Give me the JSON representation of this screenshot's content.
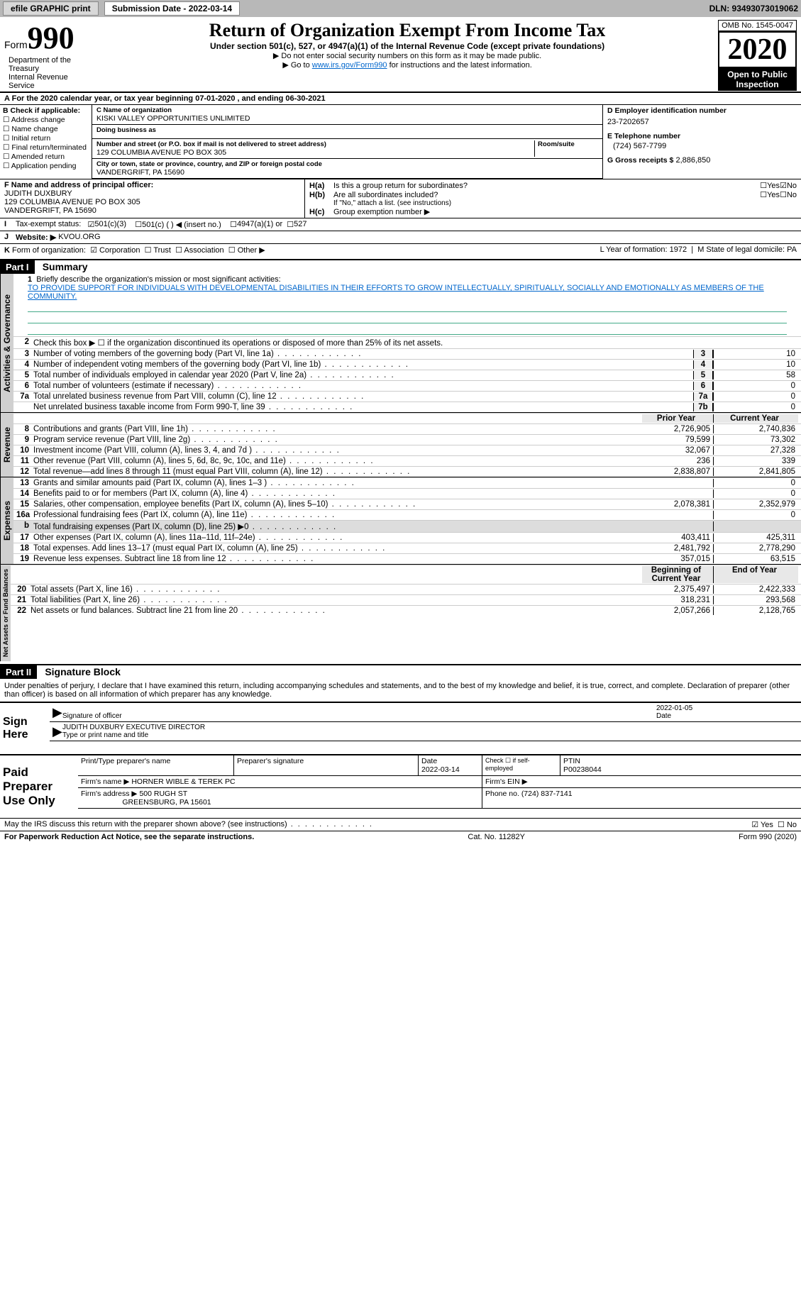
{
  "topbar": {
    "efile": "efile GRAPHIC print",
    "submission_label": "Submission Date - 2022-03-14",
    "dln": "DLN: 93493073019062"
  },
  "header": {
    "form_prefix": "Form",
    "form_number": "990",
    "title": "Return of Organization Exempt From Income Tax",
    "subtitle": "Under section 501(c), 527, or 4947(a)(1) of the Internal Revenue Code (except private foundations)",
    "arrow1": "▶ Do not enter social security numbers on this form as it may be made public.",
    "arrow2_pre": "▶ Go to ",
    "arrow2_link": "www.irs.gov/Form990",
    "arrow2_post": " for instructions and the latest information.",
    "omb": "OMB No. 1545-0047",
    "year": "2020",
    "inspect1": "Open to Public",
    "inspect2": "Inspection",
    "dept": "Department of the Treasury\nInternal Revenue Service"
  },
  "period": "For the 2020 calendar year, or tax year beginning 07-01-2020    , and ending 06-30-2021",
  "box_b": {
    "label": "B Check if applicable:",
    "opts": [
      "Address change",
      "Name change",
      "Initial return",
      "Final return/terminated",
      "Amended return",
      "Application pending"
    ]
  },
  "box_c": {
    "name_label": "C Name of organization",
    "name": "KISKI VALLEY OPPORTUNITIES UNLIMITED",
    "dba_label": "Doing business as",
    "dba": "",
    "addr_label": "Number and street (or P.O. box if mail is not delivered to street address)",
    "room_label": "Room/suite",
    "addr": "129 COLUMBIA AVENUE PO BOX 305",
    "city_label": "City or town, state or province, country, and ZIP or foreign postal code",
    "city": "VANDERGRIFT, PA  15690"
  },
  "box_d": {
    "label": "D Employer identification number",
    "ein": "23-7202657",
    "e_label": "E Telephone number",
    "phone": "(724) 567-7799",
    "g_label": "G Gross receipts $",
    "gross": "2,886,850"
  },
  "box_f": {
    "label": "F Name and address of principal officer:",
    "name": "JUDITH DUXBURY",
    "addr1": "129 COLUMBIA AVENUE PO BOX 305",
    "addr2": "VANDERGRIFT, PA  15690"
  },
  "box_h": {
    "a_label": "H(a)",
    "a_text": "Is this a group return for subordinates?",
    "a_yes": "Yes",
    "a_no": "No",
    "b_label": "H(b)",
    "b_text": "Are all subordinates included?",
    "b_note": "If \"No,\" attach a list. (see instructions)",
    "c_label": "H(c)",
    "c_text": "Group exemption number ▶"
  },
  "row_i": {
    "label": "I",
    "text": "Tax-exempt status:",
    "o1": "501(c)(3)",
    "o2": "501(c) (   ) ◀ (insert no.)",
    "o3": "4947(a)(1) or",
    "o4": "527"
  },
  "row_j": {
    "label": "J",
    "text": "Website: ▶",
    "val": "KVOU.ORG"
  },
  "row_k": {
    "label": "K",
    "text": "Form of organization:",
    "o1": "Corporation",
    "o2": "Trust",
    "o3": "Association",
    "o4": "Other ▶"
  },
  "row_lm": {
    "l": "L Year of formation: 1972",
    "m": "M State of legal domicile: PA"
  },
  "part1": {
    "hdr": "Part I",
    "title": "Summary"
  },
  "mission": {
    "num": "1",
    "label": "Briefly describe the organization's mission or most significant activities:",
    "text": "TO PROVIDE SUPPORT FOR INDIVIDUALS WITH DEVELOPMENTAL DISABILITIES IN THEIR EFFORTS TO GROW INTELLECTUALLY, SPIRITUALLY, SOCIALLY AND EMOTIONALLY AS MEMBERS OF THE COMMUNITY."
  },
  "line2": "Check this box ▶ ☐  if the organization discontinued its operations or disposed of more than 25% of its net assets.",
  "summary_groups": {
    "g1": "Activities & Governance",
    "g2": "Revenue",
    "g3": "Expenses",
    "g4": "Net Assets or Fund Balances"
  },
  "summary_hdrs": {
    "prior": "Prior Year",
    "current": "Current Year",
    "beg": "Beginning of Current Year",
    "end": "End of Year"
  },
  "lines_gov": [
    {
      "n": "3",
      "t": "Number of voting members of the governing body (Part VI, line 1a)",
      "box": "3",
      "v": "10"
    },
    {
      "n": "4",
      "t": "Number of independent voting members of the governing body (Part VI, line 1b)",
      "box": "4",
      "v": "10"
    },
    {
      "n": "5",
      "t": "Total number of individuals employed in calendar year 2020 (Part V, line 2a)",
      "box": "5",
      "v": "58"
    },
    {
      "n": "6",
      "t": "Total number of volunteers (estimate if necessary)",
      "box": "6",
      "v": "0"
    },
    {
      "n": "7a",
      "t": "Total unrelated business revenue from Part VIII, column (C), line 12",
      "box": "7a",
      "v": "0"
    },
    {
      "n": "",
      "t": "Net unrelated business taxable income from Form 990-T, line 39",
      "box": "7b",
      "v": "0"
    }
  ],
  "lines_rev": [
    {
      "n": "8",
      "t": "Contributions and grants (Part VIII, line 1h)",
      "p": "2,726,905",
      "c": "2,740,836"
    },
    {
      "n": "9",
      "t": "Program service revenue (Part VIII, line 2g)",
      "p": "79,599",
      "c": "73,302"
    },
    {
      "n": "10",
      "t": "Investment income (Part VIII, column (A), lines 3, 4, and 7d )",
      "p": "32,067",
      "c": "27,328"
    },
    {
      "n": "11",
      "t": "Other revenue (Part VIII, column (A), lines 5, 6d, 8c, 9c, 10c, and 11e)",
      "p": "236",
      "c": "339"
    },
    {
      "n": "12",
      "t": "Total revenue—add lines 8 through 11 (must equal Part VIII, column (A), line 12)",
      "p": "2,838,807",
      "c": "2,841,805"
    }
  ],
  "lines_exp": [
    {
      "n": "13",
      "t": "Grants and similar amounts paid (Part IX, column (A), lines 1–3 )",
      "p": "",
      "c": "0"
    },
    {
      "n": "14",
      "t": "Benefits paid to or for members (Part IX, column (A), line 4)",
      "p": "",
      "c": "0"
    },
    {
      "n": "15",
      "t": "Salaries, other compensation, employee benefits (Part IX, column (A), lines 5–10)",
      "p": "2,078,381",
      "c": "2,352,979"
    },
    {
      "n": "16a",
      "t": "Professional fundraising fees (Part IX, column (A), line 11e)",
      "p": "",
      "c": "0"
    },
    {
      "n": "b",
      "t": "Total fundraising expenses (Part IX, column (D), line 25) ▶0",
      "p": "",
      "c": "",
      "shade": true
    },
    {
      "n": "17",
      "t": "Other expenses (Part IX, column (A), lines 11a–11d, 11f–24e)",
      "p": "403,411",
      "c": "425,311"
    },
    {
      "n": "18",
      "t": "Total expenses. Add lines 13–17 (must equal Part IX, column (A), line 25)",
      "p": "2,481,792",
      "c": "2,778,290"
    },
    {
      "n": "19",
      "t": "Revenue less expenses. Subtract line 18 from line 12",
      "p": "357,015",
      "c": "63,515"
    }
  ],
  "lines_net": [
    {
      "n": "20",
      "t": "Total assets (Part X, line 16)",
      "p": "2,375,497",
      "c": "2,422,333"
    },
    {
      "n": "21",
      "t": "Total liabilities (Part X, line 26)",
      "p": "318,231",
      "c": "293,568"
    },
    {
      "n": "22",
      "t": "Net assets or fund balances. Subtract line 21 from line 20",
      "p": "2,057,266",
      "c": "2,128,765"
    }
  ],
  "part2": {
    "hdr": "Part II",
    "title": "Signature Block"
  },
  "sig_decl": "Under penalties of perjury, I declare that I have examined this return, including accompanying schedules and statements, and to the best of my knowledge and belief, it is true, correct, and complete. Declaration of preparer (other than officer) is based on all information of which preparer has any knowledge.",
  "sign": {
    "here": "Sign Here",
    "officer_sig": "Signature of officer",
    "date": "Date",
    "date_val": "2022-01-05",
    "name": "JUDITH DUXBURY  EXECUTIVE DIRECTOR",
    "name_label": "Type or print name and title"
  },
  "prep": {
    "label": "Paid Preparer Use Only",
    "h1": "Print/Type preparer's name",
    "h2": "Preparer's signature",
    "h3": "Date",
    "h3v": "2022-03-14",
    "h4": "Check ☐ if self-employed",
    "h5": "PTIN",
    "ptin": "P00238044",
    "firm_name_l": "Firm's name    ▶",
    "firm_name": "HORNER WIBLE & TEREK PC",
    "firm_ein_l": "Firm's EIN ▶",
    "firm_addr_l": "Firm's address ▶",
    "firm_addr": "500 RUGH ST",
    "firm_city": "GREENSBURG, PA  15601",
    "firm_phone_l": "Phone no.",
    "firm_phone": "(724) 837-7141"
  },
  "discuss": "May the IRS discuss this return with the preparer shown above? (see instructions)",
  "discuss_yes": "Yes",
  "discuss_no": "No",
  "footer": {
    "left": "For Paperwork Reduction Act Notice, see the separate instructions.",
    "mid": "Cat. No. 11282Y",
    "right": "Form 990 (2020)"
  }
}
